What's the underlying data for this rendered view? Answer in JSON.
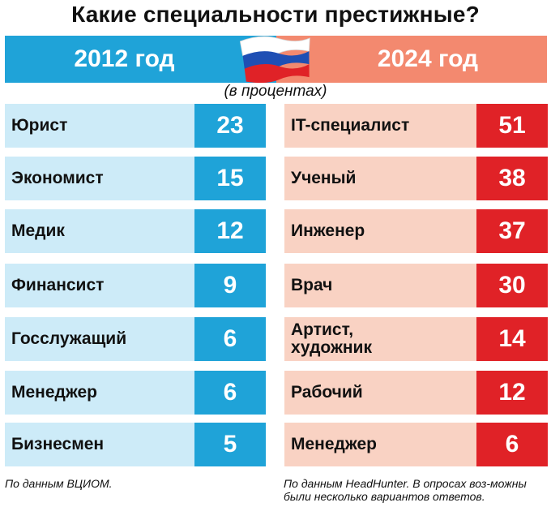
{
  "title": "Какие специальности престижные?",
  "subtitle": "(в процентах)",
  "headers": {
    "left": "2012 год",
    "right": "2024 год"
  },
  "flag_icon": "russian-flag-icon",
  "colors": {
    "left_header": "#1fa3d8",
    "left_row": "#cdebf8",
    "left_value": "#1fa3d8",
    "right_header": "#f3896f",
    "right_row": "#f9d2c3",
    "right_value": "#e02227"
  },
  "chart_data": [
    {
      "type": "table",
      "column": "2012 год",
      "unit": "в процентах",
      "rows": [
        {
          "label": "Юрист",
          "value": 23
        },
        {
          "label": "Экономист",
          "value": 15
        },
        {
          "label": "Медик",
          "value": 12
        },
        {
          "label": "Финансист",
          "value": 9
        },
        {
          "label": "Госслужащий",
          "value": 6
        },
        {
          "label": "Менеджер",
          "value": 6
        },
        {
          "label": "Бизнесмен",
          "value": 5
        }
      ]
    },
    {
      "type": "table",
      "column": "2024 год",
      "unit": "в процентах",
      "rows": [
        {
          "label": "IT-специалист",
          "value": 51
        },
        {
          "label": "Ученый",
          "value": 38
        },
        {
          "label": "Инженер",
          "value": 37
        },
        {
          "label": "Врач",
          "value": 30
        },
        {
          "label": "Артист, художник",
          "value": 14
        },
        {
          "label": "Рабочий",
          "value": 12
        },
        {
          "label": "Менеджер",
          "value": 6
        }
      ]
    }
  ],
  "notes": {
    "left": "По данным ВЦИОМ.",
    "right": "По данным HeadHunter. В опросах воз-можны были несколько вариантов ответов."
  }
}
